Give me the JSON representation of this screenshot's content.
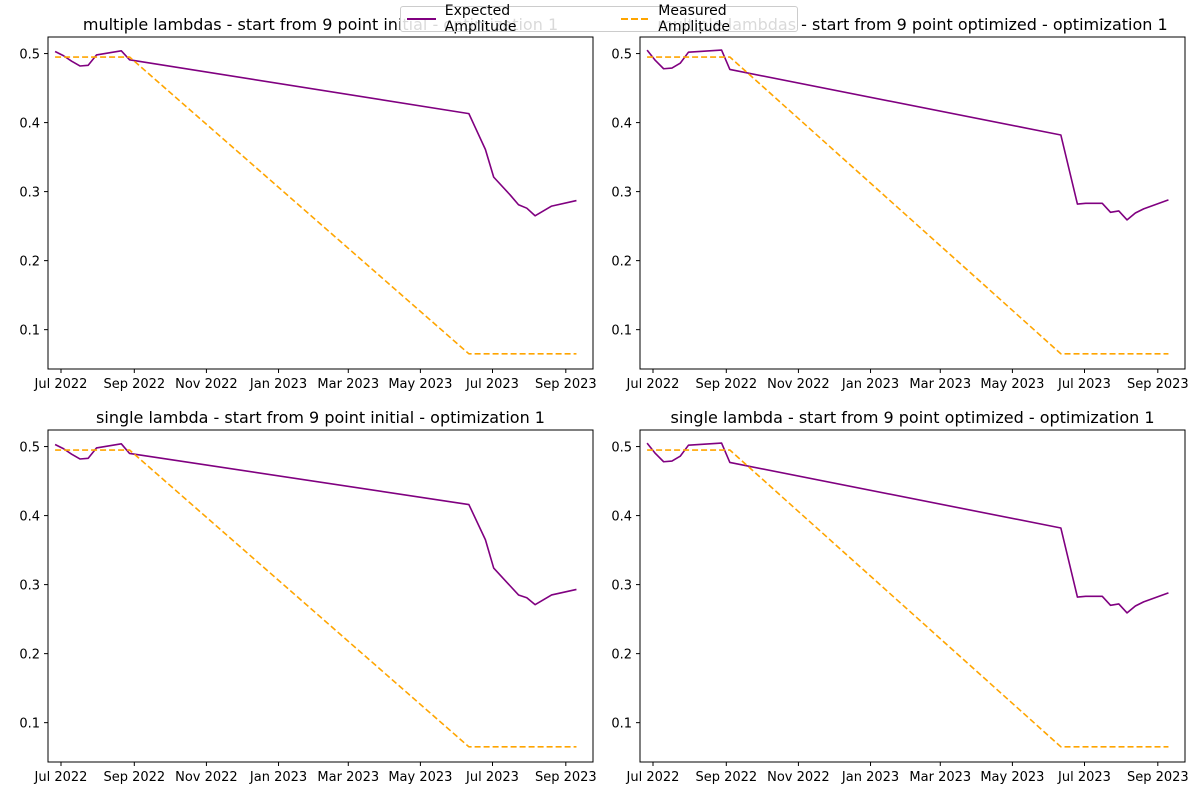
{
  "colors": {
    "expected": "#800080",
    "measured": "#FFA500"
  },
  "legend": {
    "expected_label": "Expected Amplitude",
    "measured_label": "Measured Amplitude"
  },
  "chart_data": [
    {
      "type": "line",
      "title": "multiple lambdas - start from 9 point initial - optimization 1",
      "xlabel": "",
      "ylabel": "",
      "x_axis": "date",
      "xlim": [
        "2022-06-20",
        "2023-09-24"
      ],
      "ylim": [
        0.043,
        0.524
      ],
      "x_ticks": [
        "2022-07-01",
        "2022-09-01",
        "2022-11-01",
        "2023-01-01",
        "2023-03-01",
        "2023-05-01",
        "2023-07-01",
        "2023-09-01"
      ],
      "x_tick_labels": [
        "Jul 2022",
        "Sep 2022",
        "Nov 2022",
        "Jan 2023",
        "Mar 2023",
        "May 2023",
        "Jul 2023",
        "Sep 2023"
      ],
      "y_ticks": [
        0.1,
        0.2,
        0.3,
        0.4,
        0.5
      ],
      "y_tick_labels": [
        "0.1",
        "0.2",
        "0.3",
        "0.4",
        "0.5"
      ],
      "series": [
        {
          "name": "Expected Amplitude",
          "style": "solid",
          "x": [
            "2022-06-26",
            "2022-07-03",
            "2022-07-10",
            "2022-07-17",
            "2022-07-24",
            "2022-07-31",
            "2022-08-21",
            "2022-08-28",
            "2023-06-11",
            "2023-06-25",
            "2023-07-02",
            "2023-07-16",
            "2023-07-23",
            "2023-07-30",
            "2023-08-06",
            "2023-08-20",
            "2023-09-10"
          ],
          "y": [
            0.503,
            0.497,
            0.489,
            0.482,
            0.483,
            0.498,
            0.504,
            0.491,
            0.413,
            0.361,
            0.321,
            0.295,
            0.281,
            0.276,
            0.265,
            0.279,
            0.287
          ]
        },
        {
          "name": "Measured Amplitude",
          "style": "dashed",
          "x": [
            "2022-06-26",
            "2022-08-28",
            "2023-06-11",
            "2023-09-10"
          ],
          "y": [
            0.495,
            0.495,
            0.065,
            0.065
          ]
        }
      ]
    },
    {
      "type": "line",
      "title": "multiple lambdas - start from 9 point optimized - optimization 1",
      "xlabel": "",
      "ylabel": "",
      "x_axis": "date",
      "xlim": [
        "2022-06-20",
        "2023-09-24"
      ],
      "ylim": [
        0.043,
        0.524
      ],
      "x_ticks": [
        "2022-07-01",
        "2022-09-01",
        "2022-11-01",
        "2023-01-01",
        "2023-03-01",
        "2023-05-01",
        "2023-07-01",
        "2023-09-01"
      ],
      "x_tick_labels": [
        "Jul 2022",
        "Sep 2022",
        "Nov 2022",
        "Jan 2023",
        "Mar 2023",
        "May 2023",
        "Jul 2023",
        "Sep 2023"
      ],
      "y_ticks": [
        0.1,
        0.2,
        0.3,
        0.4,
        0.5
      ],
      "y_tick_labels": [
        "0.1",
        "0.2",
        "0.3",
        "0.4",
        "0.5"
      ],
      "series": [
        {
          "name": "Expected Amplitude",
          "style": "solid",
          "x": [
            "2022-06-26",
            "2022-07-03",
            "2022-07-10",
            "2022-07-17",
            "2022-07-24",
            "2022-07-31",
            "2022-08-28",
            "2022-09-04",
            "2023-06-11",
            "2023-06-25",
            "2023-07-02",
            "2023-07-16",
            "2023-07-23",
            "2023-07-30",
            "2023-08-06",
            "2023-08-13",
            "2023-08-20",
            "2023-09-10"
          ],
          "y": [
            0.505,
            0.49,
            0.478,
            0.479,
            0.486,
            0.502,
            0.505,
            0.477,
            0.382,
            0.282,
            0.283,
            0.283,
            0.27,
            0.272,
            0.259,
            0.269,
            0.275,
            0.288
          ]
        },
        {
          "name": "Measured Amplitude",
          "style": "dashed",
          "x": [
            "2022-06-26",
            "2022-09-04",
            "2023-06-11",
            "2023-09-10"
          ],
          "y": [
            0.495,
            0.495,
            0.065,
            0.065
          ]
        }
      ]
    },
    {
      "type": "line",
      "title": "single lambda - start from 9 point initial - optimization 1",
      "xlabel": "",
      "ylabel": "",
      "x_axis": "date",
      "xlim": [
        "2022-06-20",
        "2023-09-24"
      ],
      "ylim": [
        0.043,
        0.524
      ],
      "x_ticks": [
        "2022-07-01",
        "2022-09-01",
        "2022-11-01",
        "2023-01-01",
        "2023-03-01",
        "2023-05-01",
        "2023-07-01",
        "2023-09-01"
      ],
      "x_tick_labels": [
        "Jul 2022",
        "Sep 2022",
        "Nov 2022",
        "Jan 2023",
        "Mar 2023",
        "May 2023",
        "Jul 2023",
        "Sep 2023"
      ],
      "y_ticks": [
        0.1,
        0.2,
        0.3,
        0.4,
        0.5
      ],
      "y_tick_labels": [
        "0.1",
        "0.2",
        "0.3",
        "0.4",
        "0.5"
      ],
      "series": [
        {
          "name": "Expected Amplitude",
          "style": "solid",
          "x": [
            "2022-06-26",
            "2022-07-03",
            "2022-07-10",
            "2022-07-17",
            "2022-07-24",
            "2022-07-31",
            "2022-08-21",
            "2022-08-28",
            "2023-06-11",
            "2023-06-25",
            "2023-07-02",
            "2023-07-16",
            "2023-07-23",
            "2023-07-30",
            "2023-08-06",
            "2023-08-20",
            "2023-09-10"
          ],
          "y": [
            0.503,
            0.497,
            0.489,
            0.482,
            0.483,
            0.498,
            0.504,
            0.49,
            0.416,
            0.365,
            0.324,
            0.298,
            0.285,
            0.281,
            0.271,
            0.285,
            0.293
          ]
        },
        {
          "name": "Measured Amplitude",
          "style": "dashed",
          "x": [
            "2022-06-26",
            "2022-08-28",
            "2023-06-11",
            "2023-09-10"
          ],
          "y": [
            0.495,
            0.495,
            0.065,
            0.065
          ]
        }
      ]
    },
    {
      "type": "line",
      "title": "single lambda - start from 9 point optimized - optimization 1",
      "xlabel": "",
      "ylabel": "",
      "x_axis": "date",
      "xlim": [
        "2022-06-20",
        "2023-09-24"
      ],
      "ylim": [
        0.043,
        0.524
      ],
      "x_ticks": [
        "2022-07-01",
        "2022-09-01",
        "2022-11-01",
        "2023-01-01",
        "2023-03-01",
        "2023-05-01",
        "2023-07-01",
        "2023-09-01"
      ],
      "x_tick_labels": [
        "Jul 2022",
        "Sep 2022",
        "Nov 2022",
        "Jan 2023",
        "Mar 2023",
        "May 2023",
        "Jul 2023",
        "Sep 2023"
      ],
      "y_ticks": [
        0.1,
        0.2,
        0.3,
        0.4,
        0.5
      ],
      "y_tick_labels": [
        "0.1",
        "0.2",
        "0.3",
        "0.4",
        "0.5"
      ],
      "series": [
        {
          "name": "Expected Amplitude",
          "style": "solid",
          "x": [
            "2022-06-26",
            "2022-07-03",
            "2022-07-10",
            "2022-07-17",
            "2022-07-24",
            "2022-07-31",
            "2022-08-28",
            "2022-09-04",
            "2023-06-11",
            "2023-06-25",
            "2023-07-02",
            "2023-07-16",
            "2023-07-23",
            "2023-07-30",
            "2023-08-06",
            "2023-08-13",
            "2023-08-20",
            "2023-09-10"
          ],
          "y": [
            0.505,
            0.49,
            0.478,
            0.479,
            0.486,
            0.502,
            0.505,
            0.477,
            0.382,
            0.282,
            0.283,
            0.283,
            0.27,
            0.272,
            0.259,
            0.269,
            0.275,
            0.288
          ]
        },
        {
          "name": "Measured Amplitude",
          "style": "dashed",
          "x": [
            "2022-06-26",
            "2022-09-04",
            "2023-06-11",
            "2023-09-10"
          ],
          "y": [
            0.495,
            0.495,
            0.065,
            0.065
          ]
        }
      ]
    }
  ]
}
